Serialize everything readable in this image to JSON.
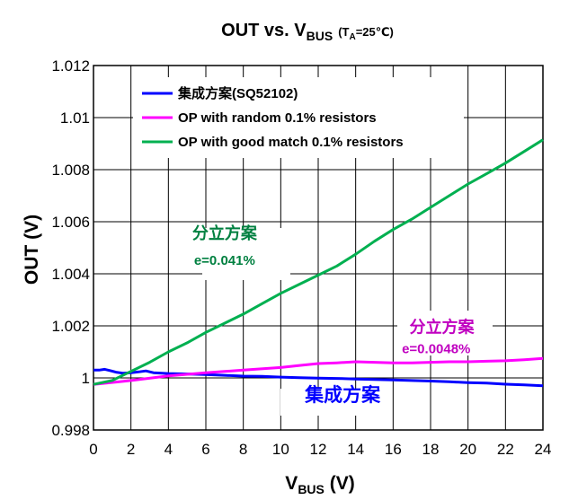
{
  "chart_data": {
    "type": "line",
    "title": {
      "main": "OUT vs. V",
      "main_sub": "BUS",
      "cond_open": "(T",
      "cond_sub": "A",
      "cond_rest": "=25℃)"
    },
    "xlabel": {
      "main": "V",
      "sub": "BUS",
      "unit": " (V)"
    },
    "ylabel": "OUT (V)",
    "xlim": [
      0,
      24
    ],
    "ylim": [
      0.998,
      1.012
    ],
    "x_ticks": [
      0,
      2,
      4,
      6,
      8,
      10,
      12,
      14,
      16,
      18,
      20,
      22,
      24
    ],
    "x_tick_labels": [
      "0",
      "2",
      "4",
      "6",
      "8",
      "10",
      "12",
      "14",
      "16",
      "18",
      "20",
      "22",
      "24"
    ],
    "y_ticks": [
      0.998,
      1.0,
      1.002,
      1.004,
      1.006,
      1.008,
      1.01,
      1.012
    ],
    "y_tick_labels": [
      "0.998",
      "1",
      "1.002",
      "1.004",
      "1.006",
      "1.008",
      "1.01",
      "1.012"
    ],
    "grid": true,
    "legend_position": "top-left",
    "series": [
      {
        "name": "集成方案(SQ52102)",
        "color": "#0000ff",
        "points": [
          [
            0,
            1.0003
          ],
          [
            0.3,
            1.0003
          ],
          [
            0.6,
            1.00033
          ],
          [
            0.9,
            1.00028
          ],
          [
            1.2,
            1.00022
          ],
          [
            1.6,
            1.00018
          ],
          [
            2.0,
            1.0002
          ],
          [
            2.4,
            1.00023
          ],
          [
            2.8,
            1.00027
          ],
          [
            3.2,
            1.0002
          ],
          [
            4,
            1.00017
          ],
          [
            5,
            1.00015
          ],
          [
            6,
            1.00013
          ],
          [
            7,
            1.0001
          ],
          [
            8,
            1.00007
          ],
          [
            9,
            1.00006
          ],
          [
            10,
            1.00003
          ],
          [
            11,
            1.00001
          ],
          [
            12,
            0.99999
          ],
          [
            13,
            0.99998
          ],
          [
            14,
            0.99996
          ],
          [
            15,
            0.99994
          ],
          [
            16,
            0.99992
          ],
          [
            17,
            0.9999
          ],
          [
            18,
            0.99988
          ],
          [
            19,
            0.99985
          ],
          [
            20,
            0.99982
          ],
          [
            21,
            0.9998
          ],
          [
            22,
            0.99976
          ],
          [
            23,
            0.99973
          ],
          [
            24,
            0.9997
          ]
        ]
      },
      {
        "name": "OP with random 0.1% resistors",
        "color": "#ff00ff",
        "points": [
          [
            0,
            0.99975
          ],
          [
            2,
            0.9999
          ],
          [
            4,
            1.00008
          ],
          [
            6,
            1.0002
          ],
          [
            8,
            1.0003
          ],
          [
            10,
            1.0004
          ],
          [
            11,
            1.00048
          ],
          [
            12,
            1.00055
          ],
          [
            13,
            1.00058
          ],
          [
            14,
            1.00062
          ],
          [
            15,
            1.0006
          ],
          [
            16,
            1.00058
          ],
          [
            17,
            1.00058
          ],
          [
            18,
            1.0006
          ],
          [
            19,
            1.00062
          ],
          [
            20,
            1.00062
          ],
          [
            21,
            1.00064
          ],
          [
            22,
            1.00066
          ],
          [
            23,
            1.0007
          ],
          [
            24,
            1.00075
          ]
        ]
      },
      {
        "name": "OP with good match 0.1% resistors",
        "color": "#00b050",
        "points": [
          [
            0,
            0.99975
          ],
          [
            1,
            0.9999
          ],
          [
            2,
            1.00025
          ],
          [
            3,
            1.0006
          ],
          [
            4,
            1.001
          ],
          [
            5,
            1.00135
          ],
          [
            6,
            1.00175
          ],
          [
            7,
            1.0021
          ],
          [
            8,
            1.00245
          ],
          [
            9,
            1.00285
          ],
          [
            10,
            1.00325
          ],
          [
            11,
            1.0036
          ],
          [
            12,
            1.00395
          ],
          [
            13,
            1.0043
          ],
          [
            14,
            1.00475
          ],
          [
            15,
            1.00525
          ],
          [
            16,
            1.0057
          ],
          [
            17,
            1.0061
          ],
          [
            18,
            1.00655
          ],
          [
            19,
            1.007
          ],
          [
            20,
            1.00745
          ],
          [
            21,
            1.00785
          ],
          [
            22,
            1.00825
          ],
          [
            23,
            1.0087
          ],
          [
            24,
            1.00915
          ]
        ]
      }
    ],
    "annotations": [
      {
        "text": "分立方案",
        "color": "#008040",
        "x": 7,
        "y": 1.00535
      },
      {
        "text": "e=0.041%",
        "color": "#008040",
        "x": 7,
        "y": 1.00435
      },
      {
        "text": "分立方案",
        "color": "#c000c0",
        "x": 18.6,
        "y": 1.00175
      },
      {
        "text": "e=0.0048%",
        "color": "#c000c0",
        "x": 18.3,
        "y": 1.00095
      },
      {
        "text": "集成方案",
        "color": "#0000ff",
        "x": 13.3,
        "y": 0.9991
      }
    ]
  }
}
